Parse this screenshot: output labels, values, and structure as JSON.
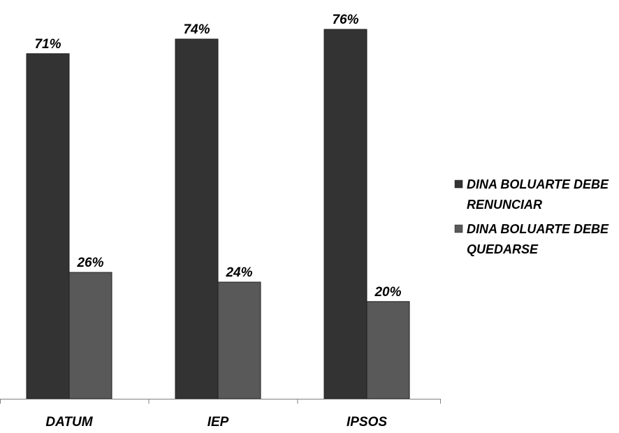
{
  "chart_data": {
    "type": "bar",
    "title": "",
    "xlabel": "",
    "ylabel": "",
    "categories": [
      "DATUM",
      "IEP",
      "IPSOS"
    ],
    "series": [
      {
        "name": "DINA BOLUARTE DEBE RENUNCIAR",
        "values": [
          71,
          74,
          76
        ],
        "labels": [
          "71%",
          "74%",
          "76%"
        ],
        "color": "#333333"
      },
      {
        "name": "DINA BOLUARTE DEBE QUEDARSE",
        "values": [
          26,
          24,
          20
        ],
        "labels": [
          "26%",
          "24%",
          "20%"
        ],
        "color": "#595959"
      }
    ],
    "legend": {
      "position": "right",
      "entries": [
        [
          "DINA BOLUARTE DEBE",
          "RENUNCIAR"
        ],
        [
          "DINA BOLUARTE DEBE",
          "QUEDARSE"
        ]
      ]
    },
    "ylim": [
      0,
      80
    ],
    "grid": false,
    "y_axis_visible": false
  }
}
